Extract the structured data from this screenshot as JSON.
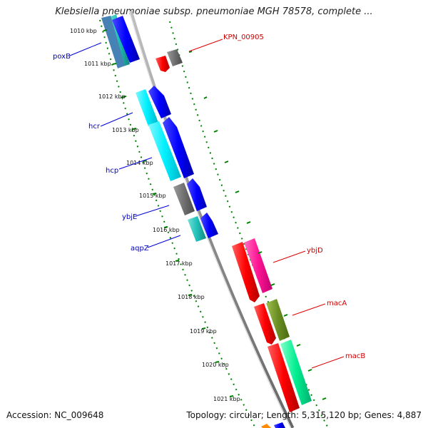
{
  "title": "Klebsiella pneumoniae subsp. pneumoniae MGH 78578, complete ...",
  "accession": "Accession: NC_009648",
  "summary": "Topology: circular; Length: 5,315,120 bp; Genes: 4,887",
  "ticks": [
    "1010 kbp",
    "1011 kbp",
    "1012 kbp",
    "1013 kbp",
    "1014 kbp",
    "1015 kbp",
    "1016 kbp",
    "1017 kbp",
    "1018 kbp",
    "1019 kbp",
    "1020 kbp",
    "1021 kbp"
  ],
  "genes_left": [
    {
      "name": "poxB",
      "color": "#0000ee"
    },
    {
      "name": "hcr",
      "color": "#0000ee"
    },
    {
      "name": "hcp",
      "color": "#0000ee"
    },
    {
      "name": "ybjE",
      "color": "#0000ee"
    },
    {
      "name": "aqpZ",
      "color": "#0000ee"
    }
  ],
  "genes_right": [
    {
      "name": "KPN_00905",
      "color": "#dd0000"
    },
    {
      "name": "ybjD",
      "color": "#dd0000"
    },
    {
      "name": "macA",
      "color": "#dd0000"
    },
    {
      "name": "macB",
      "color": "#dd0000"
    }
  ],
  "colors": {
    "forward": "#0000ff",
    "reverse": "#ff0000",
    "cyan": "#00e5ee",
    "gray": "#707070",
    "magenta": "#ff1493",
    "olive": "#6b8e23",
    "springgreen": "#00ee90",
    "teal": "#20b2aa",
    "tick": "#008000",
    "backbone": "#8a8a8a"
  }
}
